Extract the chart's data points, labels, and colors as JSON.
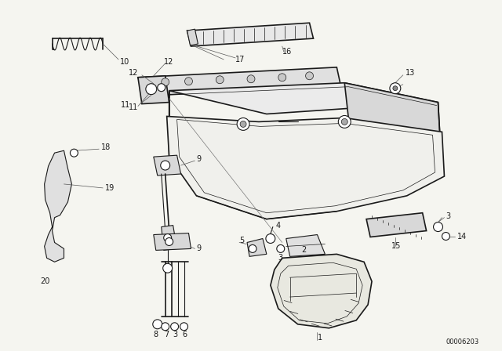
{
  "bg_color": "#f5f5f0",
  "line_color": "#1a1a1a",
  "figsize": [
    6.4,
    4.48
  ],
  "dpi": 100,
  "watermark": "00006203",
  "lw": 0.8
}
